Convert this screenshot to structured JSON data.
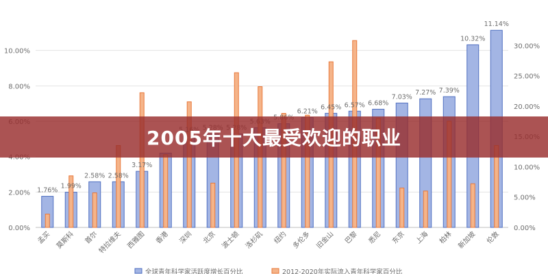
{
  "banner": {
    "title": "2005年十大最受欢迎的职业"
  },
  "colors": {
    "bar_fill": "#a3b5e4",
    "bar_stroke": "#4f6fc0",
    "line_fill": "#f5b489",
    "line_stroke": "#e8783a",
    "grid": "#e2e2e2",
    "banner": "#992d2d"
  },
  "chart_data": {
    "type": "bar",
    "title": "",
    "categories": [
      "孟买",
      "莫斯科",
      "首尔",
      "特拉维夫",
      "西雅图",
      "香港",
      "深圳",
      "北京",
      "波士顿",
      "洛杉矶",
      "纽约",
      "多伦多",
      "旧金山",
      "巴黎",
      "悉尼",
      "东京",
      "上海",
      "柏林",
      "新加坡",
      "伦敦"
    ],
    "series": [
      {
        "name": "全球青年科学家活跃度增长百分比",
        "axis": "left",
        "values": [
          1.76,
          1.99,
          2.58,
          2.58,
          3.17,
          4.2,
          5.16,
          5.28,
          5.28,
          5.63,
          5.86,
          6.21,
          6.45,
          6.57,
          6.68,
          7.03,
          7.27,
          7.39,
          10.32,
          11.14
        ],
        "labels": [
          "1.76%",
          "1.99%",
          "2.58%",
          "2.58%",
          "3.17%",
          "",
          "5.16%",
          "5.28%",
          "5.28%",
          "5.63%",
          "5.86%",
          "6.21%",
          "6.45%",
          "6.57%",
          "6.68%",
          "7.03%",
          "7.27%",
          "7.39%",
          "10.32%",
          "11.14%"
        ]
      },
      {
        "name": "2012-2020年实际流入青年科学家百分比",
        "axis": "right",
        "values": [
          2.2,
          8.5,
          5.7,
          13.5,
          22.2,
          12.0,
          20.7,
          7.3,
          25.5,
          23.2,
          18.8,
          18.5,
          27.3,
          30.8,
          18.0,
          6.5,
          6.0,
          17.5,
          7.2,
          13.5
        ]
      }
    ],
    "left_axis": {
      "min": 0,
      "max": 12,
      "ticks": [
        "0.00%",
        "2.00%",
        "4.00%",
        "6.00%",
        "8.00%",
        "10.00%"
      ]
    },
    "right_axis": {
      "min": 0,
      "max": 35,
      "ticks": [
        "0.00%",
        "5.00%",
        "10.00%",
        "15.00%",
        "20.00%",
        "25.00%",
        "30.00%"
      ]
    },
    "grid": true,
    "legend_position": "bottom"
  }
}
